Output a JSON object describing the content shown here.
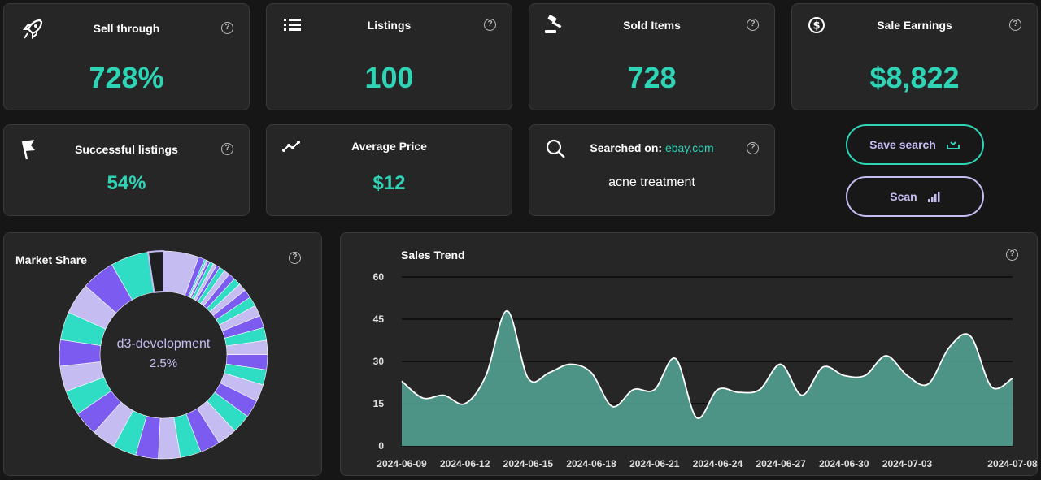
{
  "stats": {
    "sell_through": {
      "label": "Sell through",
      "value": "728%"
    },
    "listings": {
      "label": "Listings",
      "value": "100"
    },
    "sold_items": {
      "label": "Sold Items",
      "value": "728"
    },
    "sale_earnings": {
      "label": "Sale Earnings",
      "value": "$8,822"
    },
    "successful_listings": {
      "label": "Successful listings",
      "value": "54%"
    },
    "average_price": {
      "label": "Average Price",
      "value": "$12"
    }
  },
  "search": {
    "label": "Searched on:",
    "site": "ebay.com",
    "query": "acne treatment"
  },
  "buttons": {
    "save_search": "Save search",
    "scan": "Scan"
  },
  "help_glyph": "?",
  "market_share": {
    "title": "Market Share",
    "center_label": "d3-development",
    "center_value": "2.5%",
    "colors": [
      "#c5bdf2",
      "#7c5cf0",
      "#2fdcc4"
    ],
    "slices": [
      5.8,
      1.0,
      0.3,
      0.3,
      0.4,
      0.6,
      0.6,
      0.6,
      0.9,
      1.0,
      1.1,
      1.2,
      1.3,
      1.4,
      1.6,
      1.8,
      2.0,
      2.1,
      2.3,
      2.5,
      2.5,
      2.8,
      2.9,
      3.1,
      3.2,
      3.3,
      3.4,
      3.6,
      3.7,
      3.8,
      3.9,
      4.0,
      4.1,
      4.2,
      4.3,
      4.6,
      5.1,
      5.5,
      6.2,
      2.5
    ]
  },
  "chart_data": {
    "type": "area",
    "title": "Sales Trend",
    "ylim": [
      0,
      60
    ],
    "yticks": [
      "60",
      "45",
      "30",
      "15",
      "0"
    ],
    "xticks": [
      "2024-06-09",
      "2024-06-12",
      "2024-06-15",
      "2024-06-18",
      "2024-06-21",
      "2024-06-24",
      "2024-06-27",
      "2024-06-30",
      "2024-07-03",
      "2024-07-08"
    ],
    "x": [
      "2024-06-09",
      "2024-06-10",
      "2024-06-11",
      "2024-06-12",
      "2024-06-13",
      "2024-06-14",
      "2024-06-15",
      "2024-06-16",
      "2024-06-17",
      "2024-06-18",
      "2024-06-19",
      "2024-06-20",
      "2024-06-21",
      "2024-06-22",
      "2024-06-23",
      "2024-06-24",
      "2024-06-25",
      "2024-06-26",
      "2024-06-27",
      "2024-06-28",
      "2024-06-29",
      "2024-06-30",
      "2024-07-01",
      "2024-07-02",
      "2024-07-03",
      "2024-07-04",
      "2024-07-05",
      "2024-07-06",
      "2024-07-07",
      "2024-07-08"
    ],
    "values": [
      23,
      17,
      18,
      15,
      25,
      48,
      24,
      26,
      29,
      26,
      14,
      20,
      20,
      31,
      10,
      20,
      19,
      20,
      29,
      18,
      28,
      25,
      25,
      32,
      25,
      22,
      35,
      39,
      21,
      24
    ],
    "color": "#4f9a8b"
  }
}
